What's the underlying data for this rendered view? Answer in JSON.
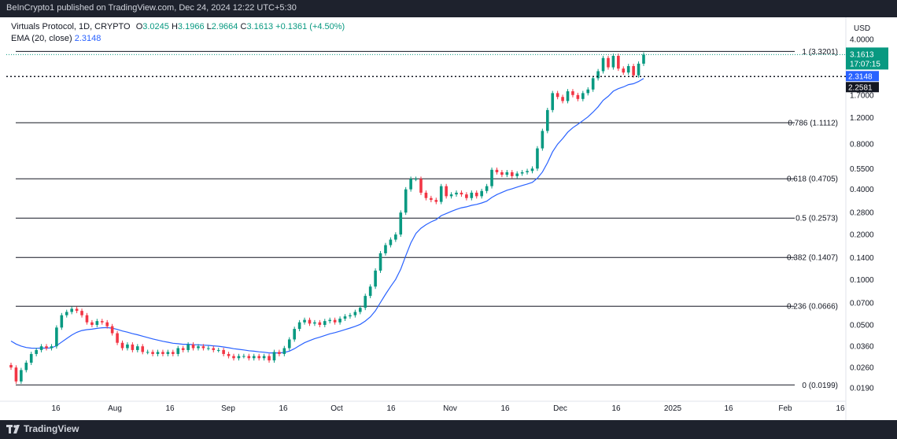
{
  "header": {
    "publisher": "BeInCrypto1 published on TradingView.com, Dec 24, 2024 12:22 UTC+5:30"
  },
  "legend": {
    "symbol": "Virtuals Protocol, 1D, CRYPTO",
    "open_label": "O",
    "open": "3.0245",
    "high_label": "H",
    "high": "3.1966",
    "low_label": "L",
    "low": "2.9664",
    "close_label": "C",
    "close": "3.1613",
    "change": "+0.1361 (+4.50%)",
    "ema_label": "EMA (20, close)",
    "ema_value": "2.3148"
  },
  "footer": {
    "brand": "TradingView"
  },
  "colors": {
    "up": "#089981",
    "down": "#f23645",
    "ema": "#2962ff",
    "fib": "#131722"
  },
  "chart_data": {
    "type": "candlestick",
    "yscale": "log",
    "ylim": [
      0.0155,
      5.6
    ],
    "ylabel": "USD",
    "y_ticks": [
      "4.0000",
      "2.7000",
      "1.7000",
      "1.2000",
      "0.8000",
      "0.5500",
      "0.4000",
      "0.2800",
      "0.2000",
      "0.1400",
      "0.1000",
      "0.0700",
      "0.0500",
      "0.0360",
      "0.0260",
      "0.0190"
    ],
    "x_ticks": [
      "16",
      "Aug",
      "16",
      "Sep",
      "16",
      "Oct",
      "16",
      "Nov",
      "16",
      "Dec",
      "16",
      "2025",
      "16",
      "Feb",
      "16"
    ],
    "fib_levels": [
      {
        "ratio": "1",
        "price": 3.3201,
        "label": "1 (3.3201)"
      },
      {
        "ratio": "0.786",
        "price": 1.1112,
        "label": "0.786 (1.1112)"
      },
      {
        "ratio": "0.618",
        "price": 0.4705,
        "label": "0.618 (0.4705)"
      },
      {
        "ratio": "0.5",
        "price": 0.2573,
        "label": "0.5 (0.2573)"
      },
      {
        "ratio": "0.382",
        "price": 0.1407,
        "label": "0.382 (0.1407)"
      },
      {
        "ratio": "0.236",
        "price": 0.0666,
        "label": "0.236 (0.0666)"
      },
      {
        "ratio": "0",
        "price": 0.0199,
        "label": "0 (0.0199)"
      }
    ],
    "price_tags": {
      "last": {
        "price": "3.1613",
        "countdown": "17:07:15"
      },
      "ema": {
        "price": "2.3148"
      },
      "line": {
        "price": "2.2581"
      }
    },
    "closes": [
      0.026,
      0.021,
      0.025,
      0.028,
      0.032,
      0.034,
      0.036,
      0.035,
      0.036,
      0.048,
      0.058,
      0.061,
      0.064,
      0.062,
      0.058,
      0.052,
      0.05,
      0.053,
      0.052,
      0.049,
      0.044,
      0.038,
      0.035,
      0.037,
      0.034,
      0.036,
      0.033,
      0.033,
      0.032,
      0.033,
      0.032,
      0.033,
      0.032,
      0.035,
      0.034,
      0.037,
      0.035,
      0.036,
      0.035,
      0.035,
      0.034,
      0.034,
      0.032,
      0.031,
      0.03,
      0.031,
      0.031,
      0.03,
      0.031,
      0.03,
      0.031,
      0.029,
      0.033,
      0.032,
      0.035,
      0.04,
      0.047,
      0.052,
      0.054,
      0.051,
      0.052,
      0.05,
      0.053,
      0.054,
      0.052,
      0.055,
      0.057,
      0.058,
      0.061,
      0.065,
      0.078,
      0.09,
      0.115,
      0.15,
      0.17,
      0.185,
      0.2,
      0.28,
      0.4,
      0.47,
      0.47,
      0.38,
      0.35,
      0.34,
      0.33,
      0.42,
      0.36,
      0.37,
      0.38,
      0.37,
      0.35,
      0.38,
      0.36,
      0.39,
      0.42,
      0.54,
      0.52,
      0.5,
      0.52,
      0.49,
      0.51,
      0.52,
      0.53,
      0.55,
      0.75,
      0.98,
      1.35,
      1.75,
      1.65,
      1.55,
      1.8,
      1.7,
      1.6,
      1.75,
      1.85,
      2.2,
      2.45,
      3.0,
      2.6,
      3.1,
      2.55,
      2.4,
      2.65,
      2.3,
      2.75,
      3.1613
    ]
  }
}
